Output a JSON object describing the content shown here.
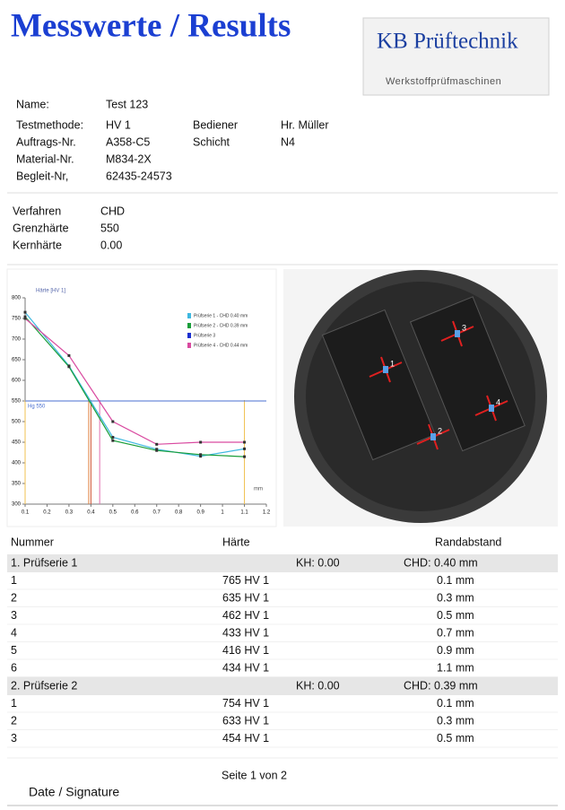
{
  "header": {
    "title": "Messwerte / Results",
    "logo_name": "KB Prüftechnik",
    "logo_sub": "Werkstoffprüfmaschinen"
  },
  "info": {
    "left": [
      {
        "label": "Name:",
        "value": "Test 123"
      },
      {
        "label": "Testmethode:",
        "value": "HV 1"
      },
      {
        "label": "Auftrags-Nr.",
        "value": "A358-C5"
      },
      {
        "label": "Material-Nr.",
        "value": "M834-2X"
      },
      {
        "label": "Begleit-Nr,",
        "value": "62435-24573"
      }
    ],
    "right": [
      {
        "label": "Bediener",
        "value": "Hr. Müller"
      },
      {
        "label": "Schicht",
        "value": "N4"
      }
    ],
    "process": [
      {
        "label": "Verfahren",
        "value": "CHD"
      },
      {
        "label": "Grenzhärte",
        "value": "550"
      },
      {
        "label": "Kernhärte",
        "value": "0.00"
      }
    ]
  },
  "chart_data": {
    "type": "line",
    "y_label": "Härte [HV 1]",
    "x_label": "mm",
    "x": [
      0.1,
      0.3,
      0.5,
      0.7,
      0.9,
      1.1
    ],
    "series": [
      {
        "name": "Prüfserie 1  - CHD 0.40 mm",
        "color": "#3fb8e0",
        "values": [
          765,
          635,
          462,
          433,
          416,
          434
        ]
      },
      {
        "name": "Prüfserie 2  - CHD 0.39 mm",
        "color": "#1a9e3a",
        "values": [
          754,
          633,
          454,
          430,
          420,
          415
        ]
      },
      {
        "name": "Prüfserie 3",
        "color": "#1a2fd0",
        "values": [
          null,
          null,
          null,
          null,
          null,
          null
        ]
      },
      {
        "name": "Prüfserie 4  - CHD 0.44 mm",
        "color": "#d94aa0",
        "values": [
          750,
          660,
          500,
          445,
          450,
          450
        ]
      }
    ],
    "hline": {
      "value": 550,
      "label": "Hg 550",
      "color": "#4a6fd0"
    },
    "vlines": [
      {
        "value": 0.1,
        "color": "#f0c050"
      },
      {
        "value": 0.39,
        "color": "#e08040"
      },
      {
        "value": 0.4,
        "color": "#d05030"
      },
      {
        "value": 0.44,
        "color": "#e070b0"
      },
      {
        "value": 1.1,
        "color": "#f0c050"
      }
    ],
    "xlim": [
      0.1,
      1.2
    ],
    "xticks": [
      0.1,
      0.2,
      0.3,
      0.4,
      0.5,
      0.6,
      0.7,
      0.8,
      0.9,
      1,
      1.1,
      1.2
    ],
    "ylim": [
      300,
      800
    ],
    "yticks": [
      300,
      350,
      400,
      450,
      500,
      550,
      600,
      650,
      700,
      750,
      800
    ],
    "grid": false
  },
  "photo": {
    "labels": [
      "1",
      "2",
      "3",
      "4"
    ]
  },
  "table": {
    "header": [
      "Nummer",
      "Härte",
      "Randabstand"
    ],
    "groups": [
      {
        "name": "1. Prüfserie 1",
        "kh": "KH: 0.00",
        "chd": "CHD: 0.40 mm",
        "rows": [
          [
            "1",
            "765 HV 1",
            "0.1 mm"
          ],
          [
            "2",
            "635 HV 1",
            "0.3 mm"
          ],
          [
            "3",
            "462 HV 1",
            "0.5 mm"
          ],
          [
            "4",
            "433 HV 1",
            "0.7 mm"
          ],
          [
            "5",
            "416 HV 1",
            "0.9 mm"
          ],
          [
            "6",
            "434 HV 1",
            "1.1 mm"
          ]
        ]
      },
      {
        "name": "2. Prüfserie 2",
        "kh": "KH: 0.00",
        "chd": "CHD: 0.39 mm",
        "rows": [
          [
            "1",
            "754 HV 1",
            "0.1 mm"
          ],
          [
            "2",
            "633 HV 1",
            "0.3 mm"
          ],
          [
            "3",
            "454 HV 1",
            "0.5 mm"
          ]
        ]
      }
    ]
  },
  "footer": {
    "page": "Seite 1 von 2",
    "signature": "Date / Signature"
  }
}
